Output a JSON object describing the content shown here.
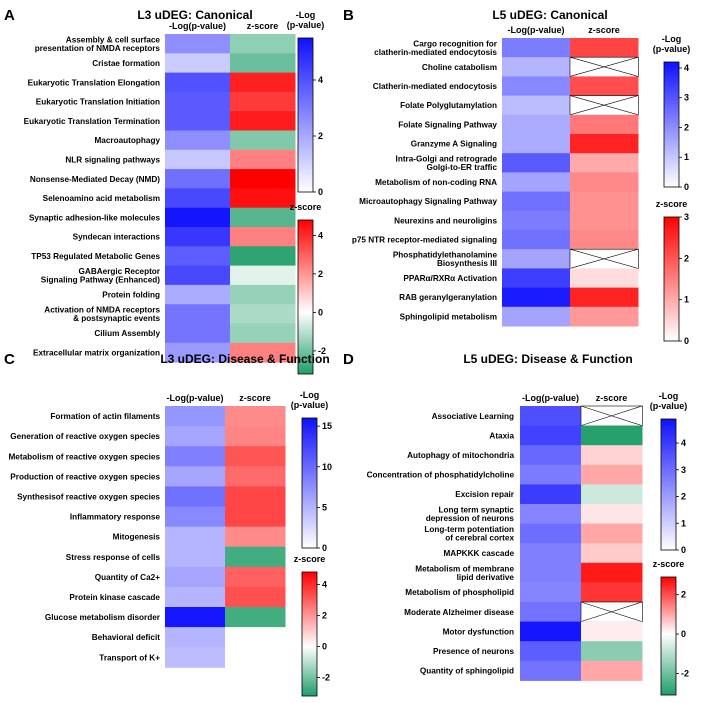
{
  "figure": {
    "colors": {
      "low_value": "#ffffff",
      "high_value": "#1010ff",
      "neg": "#1f9e68",
      "mid": "#ffffff",
      "pos": "#ff0000",
      "na_mark": "#000000"
    }
  },
  "chart_data": [
    {
      "type": "heatmap",
      "panel": "A",
      "title": "L3 uDEG: Canonical",
      "columns": [
        "-Log(p-value)",
        "z-score"
      ],
      "rows": [
        "Assembly & cell surface presentation of NMDA receptors",
        "Cristae formation",
        "Eukaryotic Translation Elongation",
        "Eukaryotic Translation Initiation",
        "Eukaryotic Translation Termination",
        "Macroautophagy",
        "NLR signaling pathways",
        "Nonsense-Mediated Decay (NMD)",
        "Selenoamino acid metabolism",
        "Synaptic adhesion-like molecules",
        "Syndecan interactions",
        "TP53 Regulated Metabolic Genes",
        "GABAergic Receptor Signaling Pathway (Enhanced)",
        "Protein folding",
        "Activation of NMDA receptors & postsynaptic events",
        "Cilium Assembly",
        "Extracellular matrix organization"
      ],
      "values": [
        2.6,
        1.2,
        4.0,
        3.8,
        3.8,
        2.6,
        1.3,
        3.3,
        4.2,
        5.4,
        4.6,
        3.7,
        4.2,
        1.9,
        3.2,
        3.2,
        2.3
      ],
      "zscores": [
        -1.6,
        -2.1,
        4.2,
        3.7,
        4.3,
        -1.8,
        2.4,
        4.8,
        4.5,
        -2.4,
        2.4,
        -3.0,
        -0.4,
        -1.5,
        -1.2,
        -1.5,
        2.4
      ],
      "value_colorbar": {
        "title": "-Log (p-value)",
        "range": [
          0,
          5.5
        ],
        "ticks": [
          0,
          2,
          4
        ]
      },
      "z_colorbar": {
        "title": "z-score",
        "range": [
          -3.2,
          4.8
        ],
        "ticks": [
          -2,
          0,
          2,
          4
        ]
      }
    },
    {
      "type": "heatmap",
      "panel": "B",
      "title": "L5 uDEG: Canonical",
      "columns": [
        "-Log(p-value)",
        "z-score"
      ],
      "rows": [
        "Cargo recognition for clatherin-mediated endocytosis",
        "Choline catabolism",
        "Clatherin-mediated endocytosis",
        "Folate Polyglutamylation",
        "Folate Signaling Pathway",
        "Granzyme A Signaling",
        "Intra-Golgi and retrograde Golgi-to-ER traffic",
        "Metabolism of non-coding RNA",
        "Microautophagy Signaling Pathway",
        "Neurexins and neuroligins",
        "p75 NTR receptor-mediated signaling",
        "Phosphatidylethanolamine Biosynthesis III",
        "PPARα/RXRα Activation",
        "RAB geranylgeranylation",
        "Sphingolipid metabolism"
      ],
      "values": [
        2.3,
        1.3,
        2.1,
        1.2,
        1.5,
        1.5,
        2.9,
        1.6,
        2.5,
        2.3,
        2.5,
        1.6,
        3.4,
        4.0,
        1.6
      ],
      "zscores": [
        2.2,
        null,
        2.1,
        null,
        1.6,
        2.6,
        1.0,
        1.4,
        1.3,
        1.3,
        1.4,
        null,
        0.4,
        2.6,
        1.2
      ],
      "value_colorbar": {
        "title": "-Log (p-value)",
        "range": [
          0,
          4.2
        ],
        "ticks": [
          0,
          1,
          2,
          3,
          4
        ]
      },
      "z_colorbar": {
        "title": "z-score",
        "range": [
          0,
          3
        ],
        "ticks": [
          0,
          1,
          2,
          3
        ]
      }
    },
    {
      "type": "heatmap",
      "panel": "C",
      "title": "L3 uDEG: Disease & Function",
      "columns": [
        "-Log(p-value)",
        "z-score"
      ],
      "rows": [
        "Formation of actin filaments",
        "Generation of reactive oxygen species",
        "Metabolism of reactive oxygen species",
        "Production of reactive oxygen species",
        "Synthesisof reactive oxygen species",
        "Inflammatory response",
        "Mitogenesis",
        "Stress response of cells",
        "Quantity of Ca2+",
        "Protein kinase cascade",
        "Glucose metabolism disorder",
        "Behavioral deficit",
        "Transport of K+"
      ],
      "values": [
        7.0,
        6.0,
        8.5,
        6.0,
        9.5,
        8.0,
        5.0,
        5.0,
        6.0,
        5.0,
        15.5,
        5.0,
        4.5
      ],
      "zscores": [
        2.2,
        2.3,
        3.2,
        2.8,
        3.5,
        3.5,
        2.2,
        -2.7,
        3.0,
        3.3,
        -2.7,
        0.0,
        0.0
      ],
      "value_colorbar": {
        "title": "-Log (p-value)",
        "range": [
          0,
          16
        ],
        "ticks": [
          0,
          5,
          10,
          15
        ]
      },
      "z_colorbar": {
        "title": "z-score",
        "range": [
          -3.2,
          4.8
        ],
        "ticks": [
          -2,
          0,
          2,
          4
        ]
      }
    },
    {
      "type": "heatmap",
      "panel": "D",
      "title": "L5 uDEG: Disease & Function",
      "columns": [
        "-Log(p-value)",
        "z-score"
      ],
      "rows": [
        "Associative Learning",
        "Ataxia",
        "Autophagy of mitochondria",
        "Concentration of phosphatidylcholine",
        "Excision repair",
        "Long term synaptic depression of neurons",
        "Long-term potentiation of cerebral cortex",
        "MAPKKK cascade",
        "Metabolism of membrane lipid derivative",
        "Metabolism of phospholipid",
        "Moderate Alzheimer disease",
        "Motor dysfunction",
        "Presence of neurons",
        "Quantity of sphingolipid"
      ],
      "values": [
        3.6,
        3.9,
        3.1,
        2.7,
        4.0,
        2.5,
        3.0,
        2.6,
        2.6,
        2.5,
        2.9,
        4.8,
        3.3,
        2.9
      ],
      "zscores": [
        null,
        -3.0,
        0.5,
        1.0,
        -0.7,
        0.3,
        1.0,
        0.6,
        2.6,
        2.3,
        null,
        0.2,
        -1.6,
        1.0
      ],
      "value_colorbar": {
        "title": "-Log (p-value)",
        "range": [
          0,
          4.9
        ],
        "ticks": [
          0,
          1,
          2,
          3,
          4
        ]
      },
      "z_colorbar": {
        "title": "z-score",
        "range": [
          -3.1,
          2.9
        ],
        "ticks": [
          -2,
          0,
          2
        ]
      }
    }
  ]
}
